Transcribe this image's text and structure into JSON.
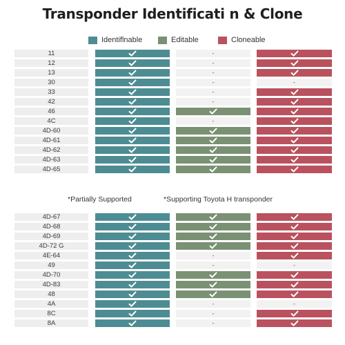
{
  "title": "Transponder Identificati n & Clone",
  "legend": [
    {
      "label": "Identiflnable",
      "color": "#4e8c93"
    },
    {
      "label": "Editable",
      "color": "#7a9173"
    },
    {
      "label": "Cloneable",
      "color": "#b9525e"
    }
  ],
  "colors": {
    "identifiable": "#4e8c93",
    "editable": "#7a9173",
    "cloneable": "#b9525e",
    "unsupported": "#f2f2f2"
  },
  "dash": "-",
  "notes": {
    "partial": "*Partially Supported",
    "toyota": "*Supporting Toyota H transponder"
  },
  "table1": [
    {
      "label": "11",
      "ident": true,
      "edit": false,
      "clone": true
    },
    {
      "label": "12",
      "ident": true,
      "edit": false,
      "clone": true
    },
    {
      "label": "13",
      "ident": true,
      "edit": false,
      "clone": true
    },
    {
      "label": "30",
      "ident": true,
      "edit": false,
      "clone": false
    },
    {
      "label": "33",
      "ident": true,
      "edit": false,
      "clone": true
    },
    {
      "label": "42",
      "ident": true,
      "edit": false,
      "clone": true
    },
    {
      "label": "46",
      "ident": true,
      "edit": true,
      "clone": true
    },
    {
      "label": "4C",
      "ident": true,
      "edit": false,
      "clone": true
    },
    {
      "label": "4D-60",
      "ident": true,
      "edit": true,
      "clone": true
    },
    {
      "label": "4D-61",
      "ident": true,
      "edit": true,
      "clone": true
    },
    {
      "label": "4D-62",
      "ident": true,
      "edit": true,
      "clone": true
    },
    {
      "label": "4D-63",
      "ident": true,
      "edit": true,
      "clone": true
    },
    {
      "label": "4D-65",
      "ident": true,
      "edit": true,
      "clone": true
    }
  ],
  "table2": [
    {
      "label": "4D-67",
      "ident": true,
      "edit": true,
      "clone": true
    },
    {
      "label": "4D-68",
      "ident": true,
      "edit": true,
      "clone": true
    },
    {
      "label": "4D-69",
      "ident": true,
      "edit": true,
      "clone": true
    },
    {
      "label": "4D-72 G",
      "ident": true,
      "edit": true,
      "clone": true
    },
    {
      "label": "4E-64",
      "ident": true,
      "edit": false,
      "clone": true
    },
    {
      "label": "49",
      "ident": true,
      "edit": false,
      "clone": false
    },
    {
      "label": "4D-70",
      "ident": true,
      "edit": true,
      "clone": true
    },
    {
      "label": "4D-83",
      "ident": true,
      "edit": true,
      "clone": true
    },
    {
      "label": "48",
      "ident": true,
      "edit": true,
      "clone": true
    },
    {
      "label": "4A",
      "ident": true,
      "edit": false,
      "clone": false
    },
    {
      "label": "8C",
      "ident": true,
      "edit": false,
      "clone": true
    },
    {
      "label": "8A",
      "ident": true,
      "edit": false,
      "clone": true
    }
  ]
}
